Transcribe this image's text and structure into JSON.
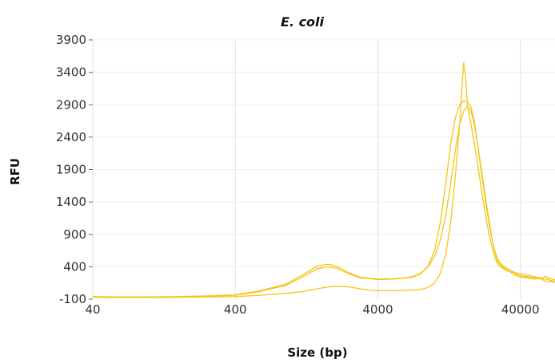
{
  "chart_data": {
    "type": "line",
    "title": "E. coli",
    "xlabel": "Size (bp)",
    "ylabel": "RFU",
    "xscale": "log",
    "xlim": [
      40,
      70000
    ],
    "ylim": [
      -100,
      3900
    ],
    "xticks": [
      40,
      400,
      4000,
      40000
    ],
    "xtick_labels": [
      "40",
      "400",
      "4000",
      "40000"
    ],
    "yticks": [
      -100,
      400,
      900,
      1400,
      1900,
      2400,
      2900,
      3400,
      3900
    ],
    "ytick_labels": [
      "-100",
      "400",
      "900",
      "1400",
      "1900",
      "2400",
      "2900",
      "3400",
      "3900"
    ],
    "grid": "vertical",
    "color": "#f5c518",
    "series": [
      {
        "x": [
          40,
          60,
          100,
          160,
          250,
          400,
          600,
          900,
          1200,
          1500,
          1800,
          2100,
          2500,
          3000,
          3500,
          4000,
          5000,
          6000,
          7000,
          8000,
          9000,
          10000,
          11000,
          12000,
          13000,
          14000,
          15000,
          16000,
          17000,
          18000,
          19000,
          20000,
          21000,
          22000,
          23000,
          24000,
          25000,
          26000,
          27000,
          28000,
          30000,
          32000,
          34000,
          36000,
          38000,
          40000,
          45000,
          50000,
          55000,
          60000,
          65000,
          70000
        ],
        "y": [
          -60,
          -70,
          -70,
          -65,
          -55,
          -40,
          20,
          110,
          250,
          370,
          400,
          370,
          290,
          230,
          220,
          200,
          210,
          220,
          240,
          290,
          410,
          650,
          1100,
          1700,
          2300,
          2700,
          2900,
          2960,
          2940,
          2870,
          2650,
          2300,
          1950,
          1650,
          1350,
          1100,
          880,
          720,
          590,
          500,
          420,
          380,
          350,
          320,
          300,
          290,
          270,
          250,
          230,
          210,
          190,
          180
        ]
      },
      {
        "x": [
          40,
          60,
          100,
          160,
          250,
          400,
          600,
          900,
          1200,
          1500,
          1800,
          2100,
          2500,
          3000,
          3500,
          4000,
          5000,
          6000,
          7000,
          8000,
          9000,
          10000,
          11000,
          12000,
          13000,
          14000,
          15000,
          16000,
          17000,
          18000,
          19000,
          20000,
          21000,
          22000,
          23000,
          24000,
          25000,
          26000,
          27000,
          28000,
          30000,
          32000,
          34000,
          36000,
          38000,
          40000,
          45000,
          50000,
          55000,
          60000,
          65000,
          70000
        ],
        "y": [
          -60,
          -65,
          -65,
          -60,
          -50,
          -35,
          30,
          130,
          280,
          410,
          440,
          400,
          310,
          240,
          225,
          210,
          215,
          225,
          250,
          300,
          400,
          560,
          820,
          1200,
          1700,
          2200,
          2600,
          2800,
          2880,
          2800,
          2600,
          2300,
          2000,
          1700,
          1400,
          1150,
          900,
          700,
          560,
          460,
          400,
          360,
          320,
          310,
          280,
          260,
          250,
          230,
          210,
          250,
          220,
          200
        ]
      },
      {
        "x": [
          40,
          60,
          100,
          160,
          250,
          400,
          600,
          900,
          1200,
          1500,
          1800,
          2100,
          2500,
          3000,
          3500,
          4000,
          5000,
          6000,
          7000,
          8000,
          9000,
          10000,
          11000,
          12000,
          13000,
          14000,
          15000,
          15500,
          16000,
          16500,
          17000,
          18000,
          19000,
          20000,
          21000,
          22000,
          23000,
          24000,
          25000,
          26000,
          27000,
          28000,
          30000,
          32000,
          34000,
          36000,
          38000,
          40000,
          45000,
          50000,
          55000,
          60000,
          65000,
          70000
        ],
        "y": [
          -70,
          -75,
          -75,
          -70,
          -65,
          -60,
          -40,
          -10,
          20,
          60,
          90,
          100,
          90,
          60,
          40,
          30,
          30,
          35,
          40,
          50,
          80,
          150,
          300,
          600,
          1100,
          1800,
          2600,
          3100,
          3550,
          3350,
          2900,
          2600,
          2300,
          2000,
          1700,
          1400,
          1150,
          920,
          750,
          600,
          500,
          420,
          380,
          340,
          320,
          280,
          260,
          240,
          230,
          210,
          220,
          180,
          170,
          160
        ]
      }
    ]
  }
}
